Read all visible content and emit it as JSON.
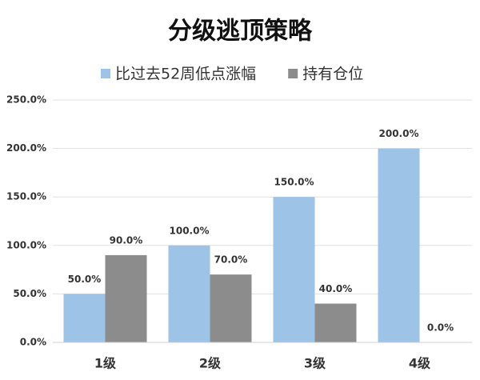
{
  "chart_data": {
    "type": "bar",
    "title": "分级逃顶策略",
    "categories": [
      "1级",
      "2级",
      "3级",
      "4级"
    ],
    "series": [
      {
        "name": "比过去52周低点涨幅",
        "color": "#9dc3e6",
        "values": [
          50,
          100,
          150,
          200
        ],
        "value_labels": [
          "50.0%",
          "100.0%",
          "150.0%",
          "200.0%"
        ]
      },
      {
        "name": "持有仓位",
        "color": "#8c8c8c",
        "values": [
          90,
          70,
          40,
          0
        ],
        "value_labels": [
          "90.0%",
          "70.0%",
          "40.0%",
          "0.0%"
        ]
      }
    ],
    "ylim": [
      0,
      250
    ],
    "yticks": [
      {
        "value": 0,
        "label": "0.0%"
      },
      {
        "value": 50,
        "label": "50.0%"
      },
      {
        "value": 100,
        "label": "100.0%"
      },
      {
        "value": 150,
        "label": "150.0%"
      },
      {
        "value": 200,
        "label": "200.0%"
      },
      {
        "value": 250,
        "label": "250.0%"
      }
    ],
    "grid": true
  }
}
